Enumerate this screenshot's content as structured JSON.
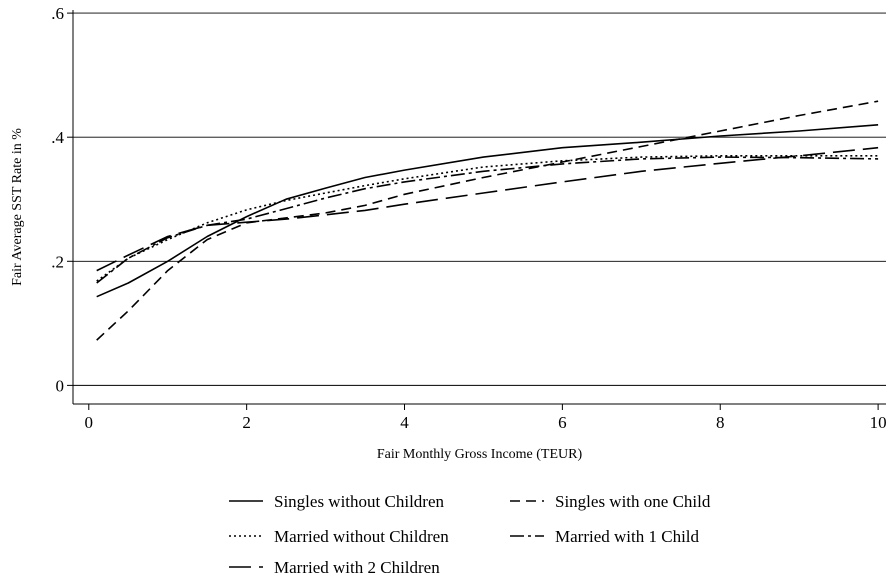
{
  "chart_data": {
    "type": "line",
    "xlabel": "Fair Monthly Gross Income (TEUR)",
    "ylabel": "Fair Average SST Rate in %",
    "xlim": [
      -0.2,
      10.1
    ],
    "ylim": [
      -0.03,
      0.605
    ],
    "x_ticks": [
      0,
      2,
      4,
      6,
      8,
      10
    ],
    "y_ticks": [
      0,
      0.2,
      0.4,
      0.6
    ],
    "x_tick_labels": [
      "0",
      "2",
      "4",
      "6",
      "8",
      "10"
    ],
    "y_tick_labels": [
      "0",
      ".2",
      ".4",
      ".6"
    ],
    "grid": "horizontal",
    "legend_position": "bottom",
    "series": [
      {
        "name": "Singles without Children",
        "style": "solid",
        "x": [
          0.1,
          0.5,
          1,
          1.5,
          2,
          2.5,
          3,
          3.5,
          4,
          5,
          6,
          7,
          8,
          9,
          10
        ],
        "y": [
          0.143,
          0.165,
          0.2,
          0.24,
          0.272,
          0.3,
          0.318,
          0.335,
          0.347,
          0.368,
          0.383,
          0.392,
          0.402,
          0.41,
          0.42
        ]
      },
      {
        "name": "Singles with one Child",
        "style": "dashed",
        "x": [
          0.1,
          0.5,
          1,
          1.5,
          2,
          2.5,
          3,
          3.5,
          4,
          5,
          6,
          7,
          8,
          9,
          10
        ],
        "y": [
          0.073,
          0.12,
          0.185,
          0.235,
          0.262,
          0.27,
          0.278,
          0.29,
          0.308,
          0.335,
          0.36,
          0.385,
          0.41,
          0.435,
          0.458
        ]
      },
      {
        "name": "Married without Children",
        "style": "dotted",
        "x": [
          0.1,
          0.5,
          1,
          1.5,
          2,
          2.5,
          3,
          3.5,
          4,
          5,
          6,
          7,
          8,
          9,
          10
        ],
        "y": [
          0.168,
          0.205,
          0.235,
          0.262,
          0.283,
          0.298,
          0.31,
          0.322,
          0.333,
          0.352,
          0.362,
          0.368,
          0.37,
          0.37,
          0.37
        ]
      },
      {
        "name": "Married with 1 Child",
        "style": "dash-dot",
        "x": [
          0.1,
          0.5,
          1,
          1.5,
          2,
          2.5,
          3,
          3.5,
          4,
          5,
          6,
          7,
          8,
          9,
          10
        ],
        "y": [
          0.165,
          0.205,
          0.238,
          0.258,
          0.268,
          0.285,
          0.302,
          0.317,
          0.328,
          0.345,
          0.357,
          0.365,
          0.368,
          0.367,
          0.365
        ]
      },
      {
        "name": "Married with 2 Children",
        "style": "long-dashed",
        "x": [
          0.1,
          0.5,
          1,
          1.5,
          2,
          2.5,
          3,
          3.5,
          4,
          5,
          6,
          7,
          8,
          9,
          10
        ],
        "y": [
          0.185,
          0.21,
          0.24,
          0.258,
          0.263,
          0.268,
          0.275,
          0.282,
          0.292,
          0.31,
          0.328,
          0.345,
          0.358,
          0.37,
          0.383
        ]
      }
    ]
  }
}
